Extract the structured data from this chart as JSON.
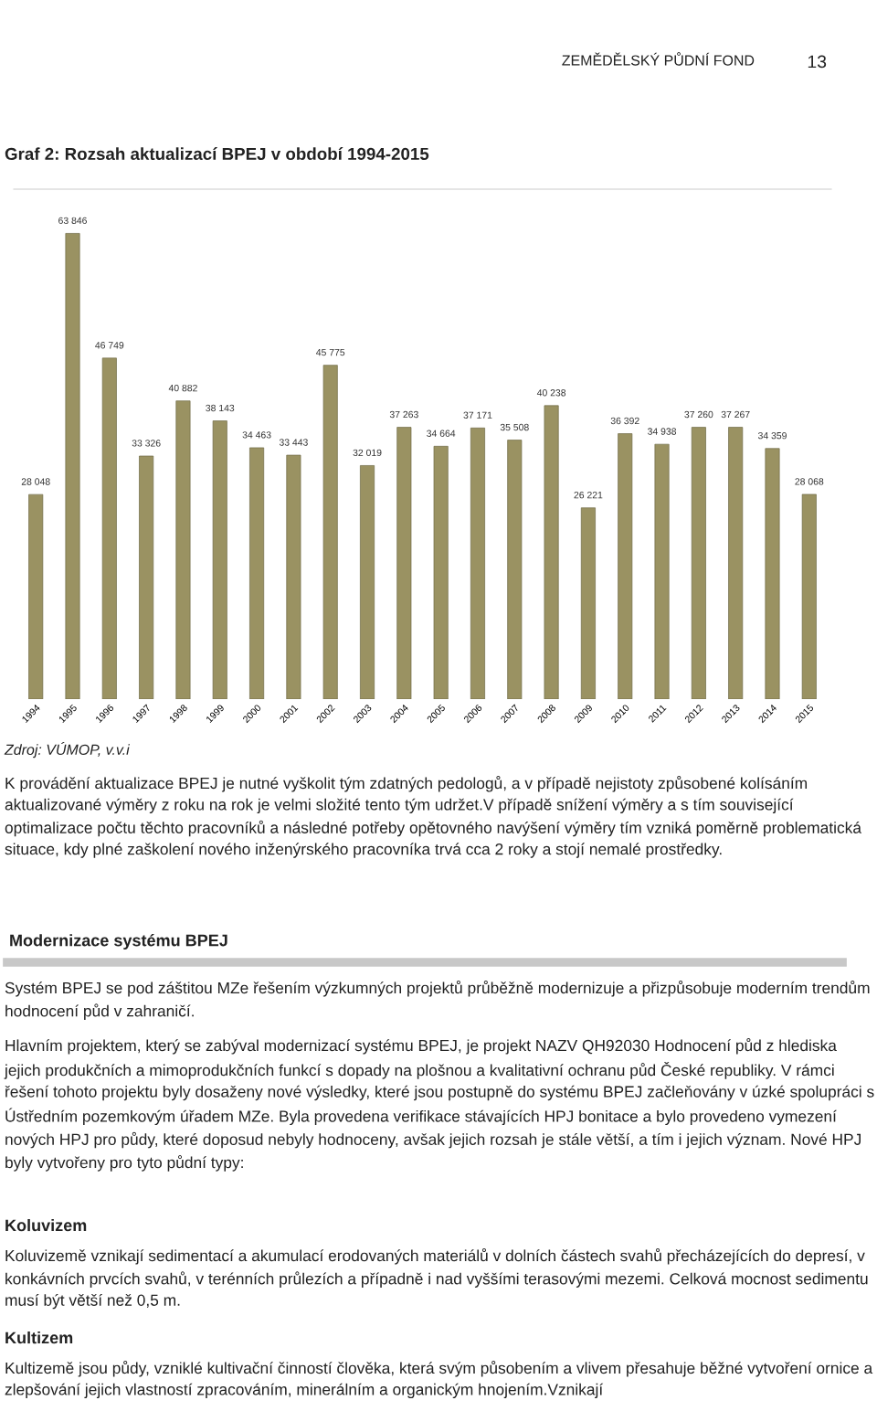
{
  "chart_data": {
    "type": "bar",
    "title": "Graf 2: Rozsah aktualizací BPEJ v období 1994-2015",
    "categories": [
      "1994",
      "1995",
      "1996",
      "1997",
      "1998",
      "1999",
      "2000",
      "2001",
      "2002",
      "2003",
      "2004",
      "2005",
      "2006",
      "2007",
      "2008",
      "2009",
      "2010",
      "2011",
      "2012",
      "2013",
      "2014",
      "2015"
    ],
    "values": [
      28048,
      63846,
      46749,
      33326,
      40882,
      38143,
      34463,
      33443,
      45775,
      32019,
      37263,
      34664,
      37171,
      35508,
      40238,
      26221,
      36392,
      34938,
      37260,
      37267,
      34359,
      28068
    ],
    "value_labels": [
      "28 048",
      "63 846",
      "46 749",
      "33 326",
      "40 882",
      "38 143",
      "34 463",
      "33 443",
      "45 775",
      "32 019",
      "37 263",
      "34 664",
      "37 171",
      "35 508",
      "40 238",
      "26 221",
      "36 392",
      "34 938",
      "37 260",
      "37 267",
      "34 359",
      "28 068"
    ],
    "color": "#9a9262",
    "grid": false,
    "legend": false,
    "tick_labels": "x",
    "annotations": [
      "ZEMĚDĚLSKÝ PŮDNÍ FOND",
      "13",
      "Zdroj: VÚMOP, v.v.i",
      "K provádění aktualizace BPEJ je nutné vyškolit tým zdatných pedologů, a v případě nejistoty způsobené kolísáním aktualizované výměry z roku na rok je velmi složité tento tým udržet.V případě snížení výměry a s tím související optimalizace počtu těchto pracovníků a následné potřeby opětovného navýšení výměry tím vzniká poměrně problematická situace, kdy plné zaškolení nového inženýrského pracovníka trvá cca 2 roky a stojí nemalé prostředky.",
      "Modernizace systému BPEJ",
      "Systém BPEJ se pod záštitou MZe řešením výzkumných projektů průběžně modernizuje a přizpůsobuje moderním trendům hodnocení půd v zahraničí.",
      "Hlavním projektem, který se zabýval modernizací systému BPEJ, je projekt NAZV QH92030 Hodnocení půd z hlediska jejich produkčních a mimoprodukčních funkcí s dopady na plošnou a kvalitativní ochranu půd České republiky. V rámci řešení tohoto projektu byly dosaženy nové výsledky, které jsou postupně do systému BPEJ začleňovány v úzké spolupráci s Ústředním pozemkovým úřadem MZe. Byla provedena verifikace stávajících HPJ bonitace a bylo provedeno vymezení nových HPJ pro půdy, které doposud nebyly hodnoceny, avšak jejich rozsah je stále větší, a tím i jejich význam. Nové HPJ byly vytvořeny pro tyto půdní typy:",
      "Koluvizem",
      "Koluvizemě vznikají sedimentací a akumulací erodovaných materiálů v dolních částech svahů přecházejících do depresí, v konkávních prvcích svahů, v terénních průlezích a případně i nad vyššími terasovými mezemi. Celková mocnost sedimentu musí být větší než 0,5 m.",
      "Kultizem",
      "Kultizemě jsou půdy, vzniklé kultivační činností člověka, která svým působením a vlivem přesahuje běžné vytvoření ornice a zlepšování jejich vlastností zpracováním, minerálním a organickým hnojením.Vznikají"
    ]
  }
}
